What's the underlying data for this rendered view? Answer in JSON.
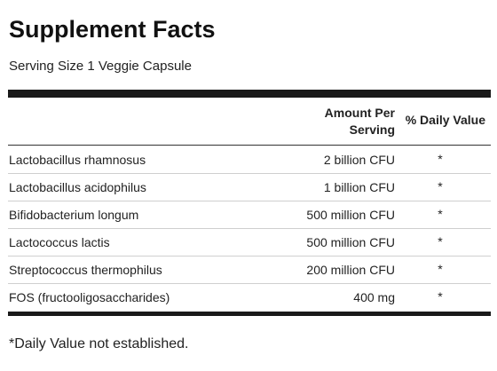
{
  "title": "Supplement Facts",
  "serving": "Serving Size 1 Veggie Capsule",
  "header": {
    "amount_line1": "Amount Per",
    "amount_line2": "Serving",
    "daily_value": "% Daily Value"
  },
  "rows": [
    {
      "name": "Lactobacillus rhamnosus",
      "amount": "2 billion CFU",
      "dv": "*"
    },
    {
      "name": "Lactobacillus acidophilus",
      "amount": "1 billion CFU",
      "dv": "*"
    },
    {
      "name": "Bifidobacterium longum",
      "amount": "500 million CFU",
      "dv": "*"
    },
    {
      "name": "Lactococcus lactis",
      "amount": "500 million CFU",
      "dv": "*"
    },
    {
      "name": "Streptococcus thermophilus",
      "amount": "200 million CFU",
      "dv": "*"
    },
    {
      "name": "FOS (fructooligosaccharides)",
      "amount": "400 mg",
      "dv": "*"
    }
  ],
  "footnote": "*Daily Value not established."
}
